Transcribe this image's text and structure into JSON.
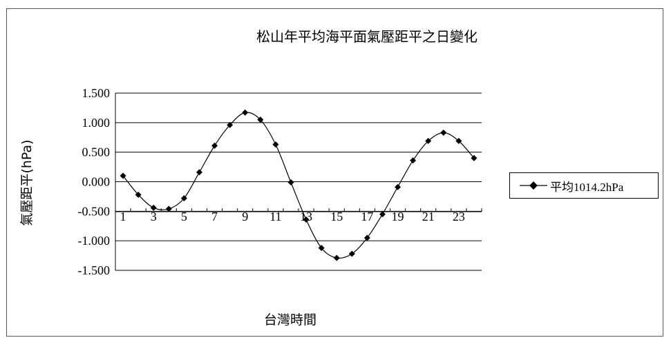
{
  "chart_data": {
    "type": "line",
    "title": "松山年平均海平面氣壓距平之日變化",
    "xlabel": "台灣時間",
    "ylabel": "氣壓距平(hPa)",
    "x": [
      1,
      2,
      3,
      4,
      5,
      6,
      7,
      8,
      9,
      10,
      11,
      12,
      13,
      14,
      15,
      16,
      17,
      18,
      19,
      20,
      21,
      22,
      23,
      24
    ],
    "x_tick_labels": [
      "1",
      "3",
      "5",
      "7",
      "9",
      "11",
      "13",
      "15",
      "17",
      "19",
      "21",
      "23"
    ],
    "y_tick_labels": [
      "1.500",
      "1.000",
      "0.500",
      "0.000",
      "-0.500",
      "-1.000",
      "-1.500"
    ],
    "ylim": [
      -1.5,
      1.5
    ],
    "grid": true,
    "legend_position": "right",
    "series": [
      {
        "name": "平均1014.2hPa",
        "color": "#000000",
        "marker": "diamond",
        "values": [
          0.1,
          -0.22,
          -0.44,
          -0.46,
          -0.28,
          0.16,
          0.61,
          0.96,
          1.17,
          1.05,
          0.63,
          -0.01,
          -0.64,
          -1.12,
          -1.29,
          -1.22,
          -0.95,
          -0.55,
          -0.09,
          0.36,
          0.69,
          0.83,
          0.69,
          0.4
        ]
      }
    ]
  }
}
